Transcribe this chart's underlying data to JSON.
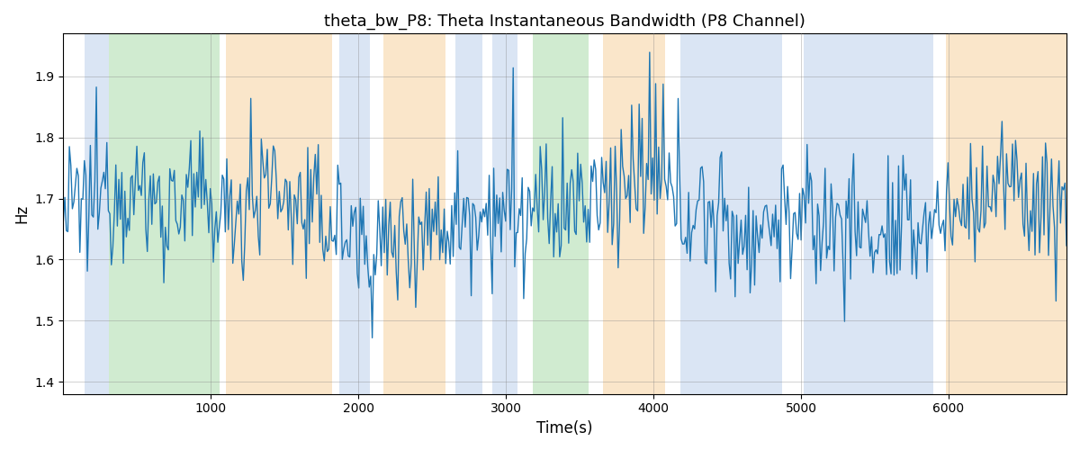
{
  "title": "theta_bw_P8: Theta Instantaneous Bandwidth (P8 Channel)",
  "xlabel": "Time(s)",
  "ylabel": "Hz",
  "xlim": [
    0,
    6800
  ],
  "ylim": [
    1.38,
    1.97
  ],
  "yticks": [
    1.4,
    1.5,
    1.6,
    1.7,
    1.8,
    1.9
  ],
  "xticks": [
    1000,
    2000,
    3000,
    4000,
    5000,
    6000
  ],
  "line_color": "#1f77b4",
  "line_width": 1.0,
  "background_color": "#ffffff",
  "bands": [
    {
      "xmin": 145,
      "xmax": 310,
      "color": "#aec6e8",
      "alpha": 0.45
    },
    {
      "xmin": 310,
      "xmax": 1060,
      "color": "#98d498",
      "alpha": 0.45
    },
    {
      "xmin": 1100,
      "xmax": 1820,
      "color": "#f5c98a",
      "alpha": 0.45
    },
    {
      "xmin": 1870,
      "xmax": 2080,
      "color": "#aec6e8",
      "alpha": 0.45
    },
    {
      "xmin": 2170,
      "xmax": 2590,
      "color": "#f5c98a",
      "alpha": 0.45
    },
    {
      "xmin": 2660,
      "xmax": 2840,
      "color": "#aec6e8",
      "alpha": 0.45
    },
    {
      "xmin": 2910,
      "xmax": 3080,
      "color": "#aec6e8",
      "alpha": 0.45
    },
    {
      "xmin": 3180,
      "xmax": 3560,
      "color": "#98d498",
      "alpha": 0.45
    },
    {
      "xmin": 3660,
      "xmax": 4080,
      "color": "#f5c98a",
      "alpha": 0.45
    },
    {
      "xmin": 4180,
      "xmax": 4870,
      "color": "#aec6e8",
      "alpha": 0.45
    },
    {
      "xmin": 5020,
      "xmax": 5900,
      "color": "#aec6e8",
      "alpha": 0.45
    },
    {
      "xmin": 5980,
      "xmax": 6800,
      "color": "#f5c98a",
      "alpha": 0.45
    }
  ],
  "seed": 12345,
  "n_points": 670,
  "signal_mean": 1.675,
  "signal_std": 0.07
}
